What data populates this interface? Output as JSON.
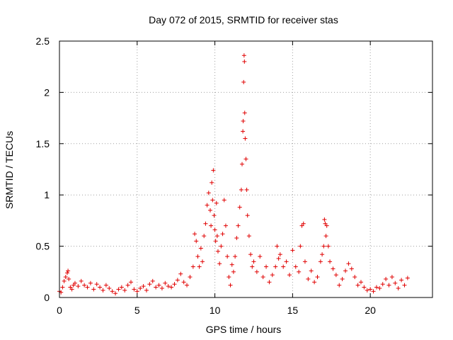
{
  "chart_data": {
    "type": "scatter",
    "title": "Day 072 of 2015, SRMTID for receiver stas",
    "xlabel": "GPS time / hours",
    "ylabel": "SRMTID / TECUs",
    "xlim": [
      0,
      24
    ],
    "ylim": [
      0,
      2.5
    ],
    "xticks": [
      0,
      5,
      10,
      15,
      20
    ],
    "xtick_labels": [
      "0",
      "5",
      "10",
      "15",
      "20"
    ],
    "yticks": [
      0,
      0.5,
      1,
      1.5,
      2,
      2.5
    ],
    "ytick_labels": [
      "0",
      "0.5",
      "1",
      "1.5",
      "2",
      "2.5"
    ],
    "grid": true,
    "marker": "plus",
    "color": "#e00000",
    "x": [
      0.0,
      0.1,
      0.2,
      0.3,
      0.4,
      0.5,
      0.55,
      0.6,
      0.7,
      0.8,
      0.9,
      1.0,
      1.2,
      1.4,
      1.6,
      1.8,
      2.0,
      2.2,
      2.4,
      2.6,
      2.8,
      3.0,
      3.2,
      3.4,
      3.6,
      3.8,
      4.0,
      4.2,
      4.4,
      4.6,
      4.8,
      5.0,
      5.2,
      5.4,
      5.6,
      5.8,
      6.0,
      6.2,
      6.4,
      6.6,
      6.8,
      7.0,
      7.2,
      7.4,
      7.6,
      7.8,
      8.0,
      8.2,
      8.4,
      8.6,
      8.7,
      8.8,
      8.9,
      9.0,
      9.1,
      9.2,
      9.3,
      9.4,
      9.5,
      9.6,
      9.7,
      9.75,
      9.8,
      9.85,
      9.9,
      9.95,
      10.0,
      10.05,
      10.1,
      10.15,
      10.2,
      10.3,
      10.4,
      10.5,
      10.6,
      10.7,
      10.8,
      10.9,
      11.0,
      11.1,
      11.2,
      11.3,
      11.4,
      11.5,
      11.6,
      11.7,
      11.75,
      11.8,
      11.82,
      11.85,
      11.88,
      11.9,
      11.92,
      11.95,
      12.0,
      12.05,
      12.1,
      12.2,
      12.3,
      12.4,
      12.5,
      12.7,
      12.9,
      13.1,
      13.3,
      13.5,
      13.7,
      13.9,
      14.0,
      14.1,
      14.2,
      14.4,
      14.6,
      14.8,
      15.0,
      15.2,
      15.4,
      15.5,
      15.6,
      15.7,
      15.8,
      16.0,
      16.2,
      16.4,
      16.6,
      16.8,
      16.9,
      17.0,
      17.05,
      17.1,
      17.15,
      17.2,
      17.3,
      17.4,
      17.6,
      17.8,
      18.0,
      18.2,
      18.4,
      18.6,
      18.8,
      19.0,
      19.2,
      19.4,
      19.6,
      19.8,
      20.0,
      20.2,
      20.4,
      20.6,
      20.8,
      21.0,
      21.2,
      21.4,
      21.6,
      21.8,
      22.0,
      22.2,
      22.4
    ],
    "y": [
      0.06,
      0.05,
      0.1,
      0.16,
      0.2,
      0.24,
      0.26,
      0.18,
      0.1,
      0.08,
      0.12,
      0.14,
      0.11,
      0.16,
      0.12,
      0.1,
      0.14,
      0.08,
      0.13,
      0.1,
      0.07,
      0.12,
      0.09,
      0.06,
      0.04,
      0.08,
      0.1,
      0.07,
      0.12,
      0.15,
      0.08,
      0.06,
      0.09,
      0.11,
      0.07,
      0.13,
      0.16,
      0.1,
      0.12,
      0.09,
      0.14,
      0.11,
      0.1,
      0.13,
      0.17,
      0.23,
      0.15,
      0.12,
      0.2,
      0.3,
      0.62,
      0.55,
      0.4,
      0.3,
      0.48,
      0.35,
      0.6,
      0.72,
      0.9,
      1.02,
      0.85,
      0.7,
      1.12,
      0.95,
      1.24,
      0.8,
      0.66,
      0.55,
      0.92,
      0.6,
      0.45,
      0.33,
      0.5,
      0.62,
      0.95,
      0.7,
      0.4,
      0.2,
      0.12,
      0.32,
      0.25,
      0.4,
      0.58,
      0.7,
      0.88,
      1.05,
      1.3,
      1.62,
      1.72,
      2.1,
      2.36,
      2.3,
      1.8,
      1.55,
      1.35,
      1.05,
      0.8,
      0.6,
      0.42,
      0.3,
      0.35,
      0.25,
      0.4,
      0.2,
      0.3,
      0.15,
      0.22,
      0.3,
      0.5,
      0.38,
      0.42,
      0.3,
      0.35,
      0.22,
      0.46,
      0.3,
      0.25,
      0.5,
      0.7,
      0.72,
      0.35,
      0.18,
      0.26,
      0.15,
      0.2,
      0.35,
      0.42,
      0.5,
      0.76,
      0.72,
      0.6,
      0.7,
      0.5,
      0.35,
      0.28,
      0.22,
      0.12,
      0.18,
      0.26,
      0.33,
      0.28,
      0.2,
      0.12,
      0.15,
      0.1,
      0.07,
      0.08,
      0.06,
      0.1,
      0.09,
      0.13,
      0.18,
      0.12,
      0.2,
      0.14,
      0.09,
      0.17,
      0.12,
      0.19
    ]
  }
}
